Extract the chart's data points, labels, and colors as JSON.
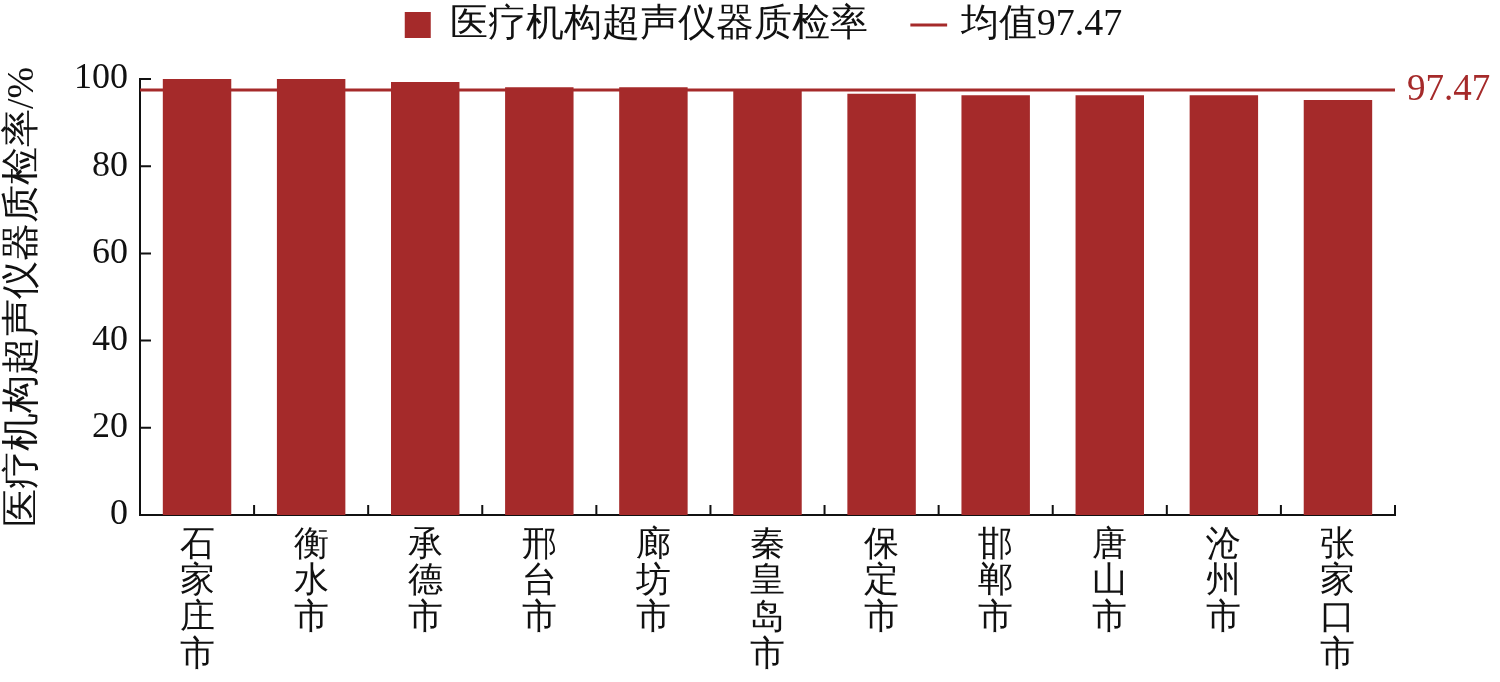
{
  "chart_data": {
    "type": "bar",
    "categories": [
      "石家庄市",
      "衡水市",
      "承德市",
      "邢台市",
      "廊坊市",
      "秦皇岛市",
      "保定市",
      "邯郸市",
      "唐山市",
      "沧州市",
      "张家口市"
    ],
    "series": [
      {
        "name": "医疗机构超声仪器质检率",
        "color": "#a52a2a",
        "values": [
          100,
          100,
          99.3,
          98.1,
          98.1,
          97.5,
          96.6,
          96.3,
          96.3,
          96.3,
          95.2
        ]
      }
    ],
    "ylabel": "医疗机构超声仪器质检率/%",
    "ylim": [
      0,
      100
    ],
    "yticks": [
      0,
      20,
      40,
      60,
      80,
      100
    ],
    "legend": "top",
    "ref_lines": [
      {
        "axis": "y",
        "value": 97.47,
        "label": "均值97.47",
        "color": "#a52a2a"
      }
    ],
    "annotations": [
      "97.47"
    ]
  }
}
